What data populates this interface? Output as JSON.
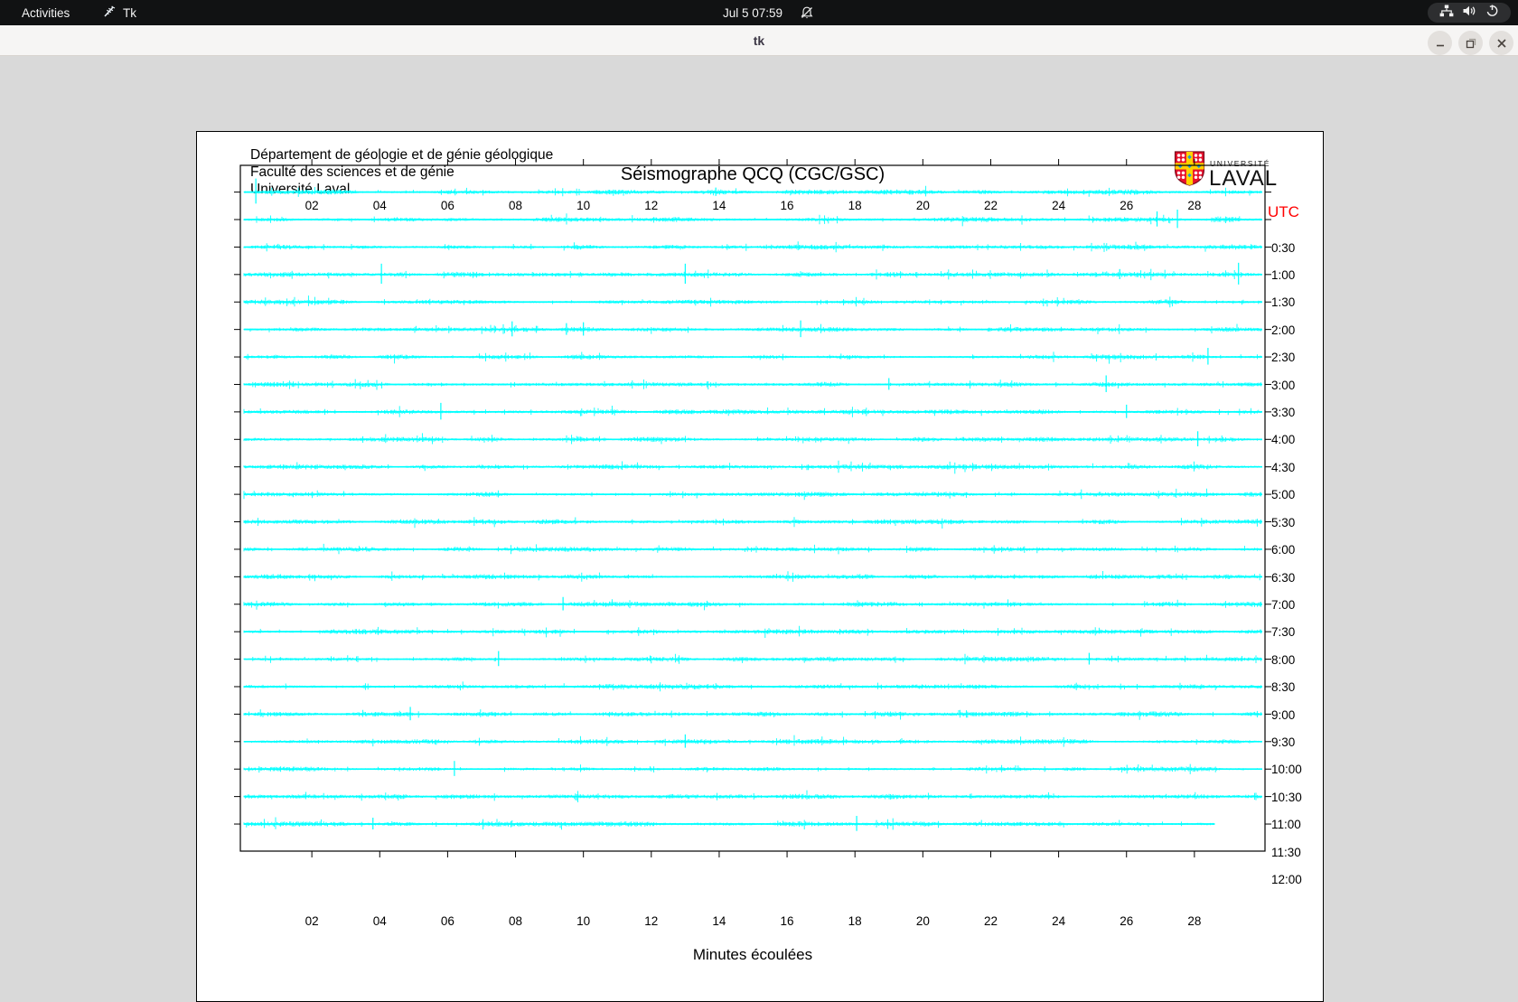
{
  "topbar": {
    "activities_label": "Activities",
    "app_name": "Tk",
    "clock": "Jul 5  07:59",
    "icons": [
      "tk-feather-icon",
      "notifications-muted-bell-icon",
      "network-icon",
      "volume-icon",
      "power-icon"
    ]
  },
  "titlebar": {
    "title": "tk"
  },
  "header": {
    "lines": [
      "Département de géologie et de génie géologique",
      "Faculté des sciences et de génie",
      "Université Laval"
    ],
    "title": "Séismographe QCQ (CGC/GSC)",
    "logo_top": "UNIVERSITÉ",
    "logo_bottom": "LAVAL"
  },
  "chart_data": {
    "type": "line",
    "subtype": "helicorder-seismogram",
    "title": "Séismographe QCQ (CGC/GSC)",
    "xlabel": "Minutes écoulées",
    "right_axis_label": "UTC",
    "x_range_minutes": [
      0,
      30
    ],
    "grid": false,
    "trace_color": "#00ffff",
    "accent_red": "#ff0000",
    "x_ticks": [
      {
        "minute": 2,
        "label": "02"
      },
      {
        "minute": 4,
        "label": "04"
      },
      {
        "minute": 6,
        "label": "06"
      },
      {
        "minute": 8,
        "label": "08"
      },
      {
        "minute": 10,
        "label": "10"
      },
      {
        "minute": 12,
        "label": "12"
      },
      {
        "minute": 14,
        "label": "14"
      },
      {
        "minute": 16,
        "label": "16"
      },
      {
        "minute": 18,
        "label": "18"
      },
      {
        "minute": 20,
        "label": "20"
      },
      {
        "minute": 22,
        "label": "22"
      },
      {
        "minute": 24,
        "label": "24"
      },
      {
        "minute": 26,
        "label": "26"
      },
      {
        "minute": 28,
        "label": "28"
      }
    ],
    "rows": [
      {
        "label": "0:30",
        "end_minute": 30,
        "spikes": [
          {
            "minute": 0.35,
            "amp": 15
          },
          {
            "minute": 13.9,
            "amp": 5
          }
        ],
        "bursts": [
          {
            "from": 13.5,
            "to": 14.3,
            "amp": 3
          }
        ]
      },
      {
        "label": "1:00",
        "end_minute": 30,
        "spikes": [
          {
            "minute": 26.9,
            "amp": 9
          },
          {
            "minute": 27.5,
            "amp": 11
          }
        ],
        "bursts": [
          {
            "from": 28.5,
            "to": 29.4,
            "amp": 3.5
          }
        ]
      },
      {
        "label": "1:30",
        "end_minute": 30,
        "spikes": [],
        "bursts": []
      },
      {
        "label": "2:00",
        "end_minute": 30,
        "spikes": [
          {
            "minute": 4.05,
            "amp": 12
          },
          {
            "minute": 13.0,
            "amp": 12
          },
          {
            "minute": 25.8,
            "amp": 6
          },
          {
            "minute": 29.3,
            "amp": 13
          }
        ],
        "bursts": [
          {
            "from": 24.9,
            "to": 25.6,
            "amp": 3
          }
        ]
      },
      {
        "label": "2:30",
        "end_minute": 30,
        "spikes": [],
        "bursts": []
      },
      {
        "label": "3:00",
        "end_minute": 30,
        "spikes": [
          {
            "minute": 7.9,
            "amp": 9
          },
          {
            "minute": 9.5,
            "amp": 7
          },
          {
            "minute": 10.0,
            "amp": 8
          },
          {
            "minute": 16.4,
            "amp": 10
          }
        ],
        "bursts": []
      },
      {
        "label": "3:30",
        "end_minute": 30,
        "spikes": [
          {
            "minute": 28.4,
            "amp": 10
          }
        ],
        "bursts": [
          {
            "from": 17.5,
            "to": 18.2,
            "amp": 2.5
          }
        ]
      },
      {
        "label": "4:00",
        "end_minute": 30,
        "spikes": [
          {
            "minute": 19.0,
            "amp": 7
          },
          {
            "minute": 25.4,
            "amp": 10
          }
        ],
        "bursts": []
      },
      {
        "label": "4:30",
        "end_minute": 30,
        "spikes": [
          {
            "minute": 5.8,
            "amp": 10
          },
          {
            "minute": 26.0,
            "amp": 8
          }
        ],
        "bursts": []
      },
      {
        "label": "5:00",
        "end_minute": 30,
        "spikes": [
          {
            "minute": 28.1,
            "amp": 9
          }
        ],
        "bursts": []
      },
      {
        "label": "5:30",
        "end_minute": 30,
        "spikes": [],
        "bursts": []
      },
      {
        "label": "6:00",
        "end_minute": 30,
        "spikes": [],
        "bursts": []
      },
      {
        "label": "6:30",
        "end_minute": 30,
        "spikes": [],
        "bursts": []
      },
      {
        "label": "7:00",
        "end_minute": 30,
        "spikes": [],
        "bursts": []
      },
      {
        "label": "7:30",
        "end_minute": 30,
        "spikes": [],
        "bursts": []
      },
      {
        "label": "8:00",
        "end_minute": 30,
        "spikes": [
          {
            "minute": 9.4,
            "amp": 8
          }
        ],
        "bursts": []
      },
      {
        "label": "8:30",
        "end_minute": 30,
        "spikes": [],
        "bursts": []
      },
      {
        "label": "9:00",
        "end_minute": 30,
        "spikes": [
          {
            "minute": 7.5,
            "amp": 9
          },
          {
            "minute": 24.9,
            "amp": 7
          }
        ],
        "bursts": []
      },
      {
        "label": "9:30",
        "end_minute": 30,
        "spikes": [],
        "bursts": []
      },
      {
        "label": "10:00",
        "end_minute": 30,
        "spikes": [
          {
            "minute": 4.9,
            "amp": 8
          }
        ],
        "bursts": []
      },
      {
        "label": "10:30",
        "end_minute": 30,
        "spikes": [
          {
            "minute": 13.0,
            "amp": 8
          }
        ],
        "bursts": []
      },
      {
        "label": "11:00",
        "end_minute": 30,
        "spikes": [
          {
            "minute": 6.2,
            "amp": 9
          }
        ],
        "bursts": []
      },
      {
        "label": "11:30",
        "end_minute": 30,
        "spikes": [],
        "bursts": []
      },
      {
        "label": "12:00",
        "end_minute": 28.6,
        "spikes": [
          {
            "minute": 3.8,
            "amp": 7
          },
          {
            "minute": 18.05,
            "amp": 9
          }
        ],
        "bursts": []
      }
    ]
  }
}
